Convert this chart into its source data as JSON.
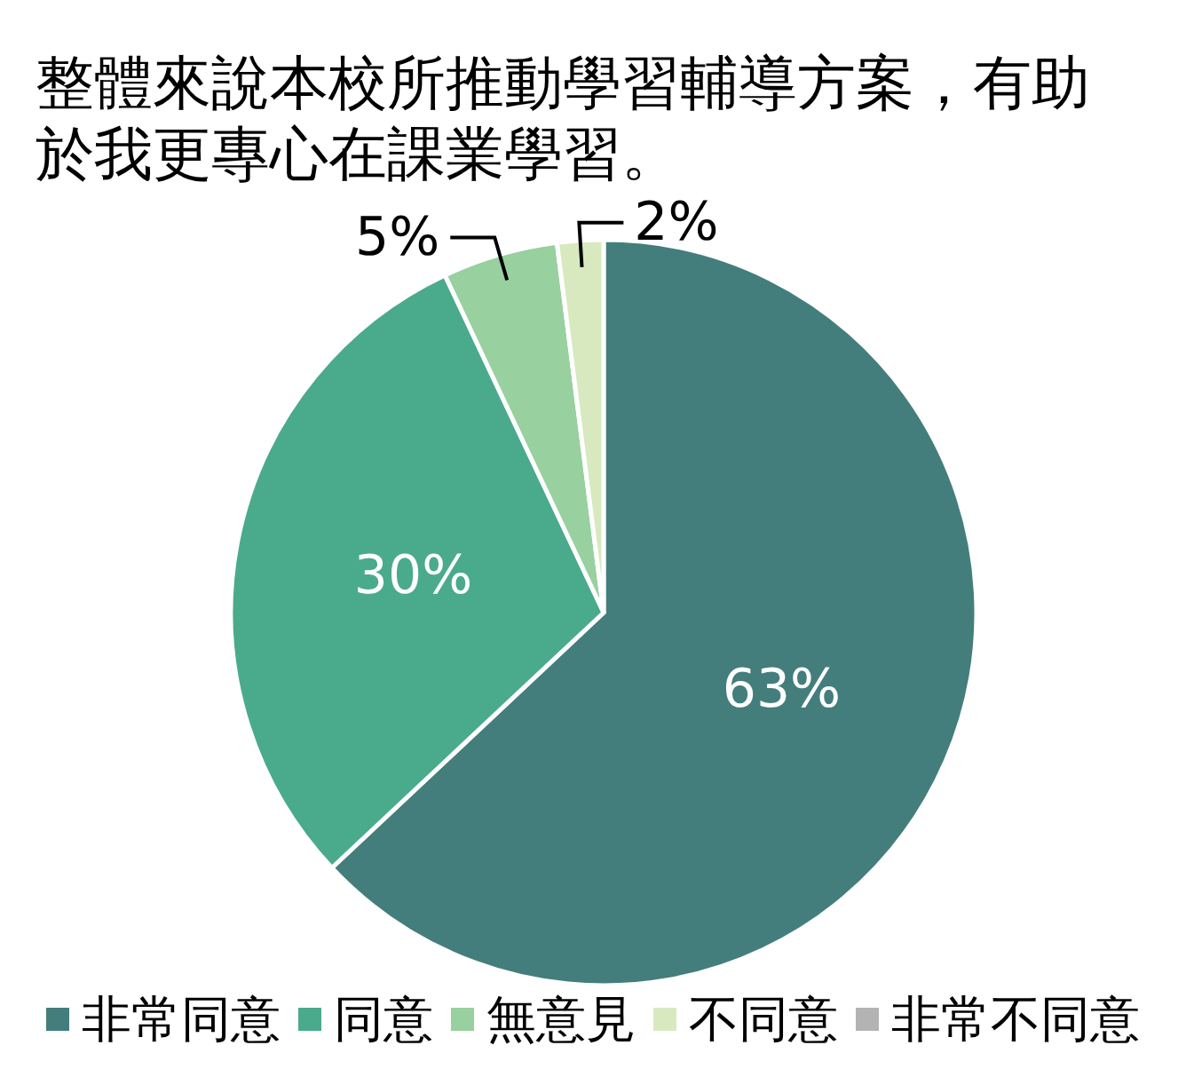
{
  "chart_data": {
    "type": "pie",
    "title": "整體來說本校所推動學習輔導方案，有助於我更專心在課業學習。",
    "categories": [
      "非常同意",
      "同意",
      "無意見",
      "不同意",
      "非常不同意"
    ],
    "values": [
      63,
      30,
      5,
      2,
      0
    ],
    "colors": [
      "#437e7c",
      "#4aaa8c",
      "#98d0a0",
      "#d8e9c0",
      "#b3b3b3"
    ],
    "value_labels": [
      "63%",
      "30%",
      "5%",
      "2%",
      null
    ],
    "legend": "bottom"
  }
}
